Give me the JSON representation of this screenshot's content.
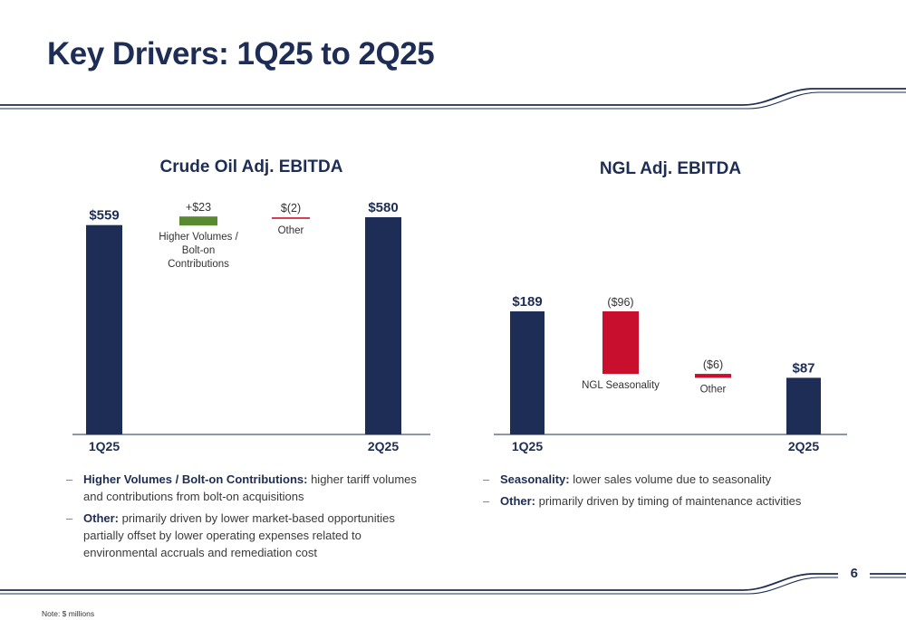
{
  "page": {
    "title": "Key Drivers: 1Q25 to 2Q25",
    "page_number": "6",
    "footnote": "Note: $ millions"
  },
  "colors": {
    "navy": "#1e2d55",
    "increase": "#5a8a2f",
    "decrease": "#c8102e",
    "rule": "#1e2d55"
  },
  "chart_data": [
    {
      "type": "bar",
      "subtype": "waterfall",
      "title": "Crude Oil Adj. EBITDA",
      "categories": [
        "1Q25",
        "Higher Volumes / Bolt-on Contributions",
        "Other",
        "2Q25"
      ],
      "values": [
        559,
        23,
        -2,
        580
      ],
      "kinds": [
        "total",
        "delta",
        "delta",
        "total"
      ],
      "value_labels": [
        "$559",
        "+$23",
        "$(2)",
        "$580"
      ],
      "axis_labels": [
        "1Q25",
        "",
        "",
        "2Q25"
      ],
      "category_captions": [
        "",
        "Higher Volumes /|Bolt-on|Contributions",
        "Other",
        ""
      ],
      "ylim": [
        0,
        580
      ],
      "grid": false,
      "legend": "none"
    },
    {
      "type": "bar",
      "subtype": "waterfall",
      "title": "NGL Adj. EBITDA",
      "categories": [
        "1Q25",
        "NGL Seasonality",
        "Other",
        "2Q25"
      ],
      "values": [
        189,
        -96,
        -6,
        87
      ],
      "kinds": [
        "total",
        "delta",
        "delta",
        "total"
      ],
      "value_labels": [
        "$189",
        "($96)",
        "($6)",
        "$87"
      ],
      "axis_labels": [
        "1Q25",
        "",
        "",
        "2Q25"
      ],
      "category_captions": [
        "",
        "NGL Seasonality",
        "Other",
        ""
      ],
      "ylim": [
        0,
        189
      ],
      "grid": false,
      "legend": "none"
    }
  ],
  "crude_notes": [
    {
      "term": "Higher Volumes / Bolt-on Contributions:",
      "text": " higher tariff volumes and contributions from bolt-on acquisitions"
    },
    {
      "term": "Other:",
      "text": " primarily driven by lower market-based opportunities partially offset by lower operating expenses related to environmental accruals and remediation cost"
    }
  ],
  "ngl_notes": [
    {
      "term": "Seasonality:",
      "text": " lower sales volume due to seasonality"
    },
    {
      "term": "Other:",
      "text": " primarily driven by timing of maintenance activities"
    }
  ]
}
